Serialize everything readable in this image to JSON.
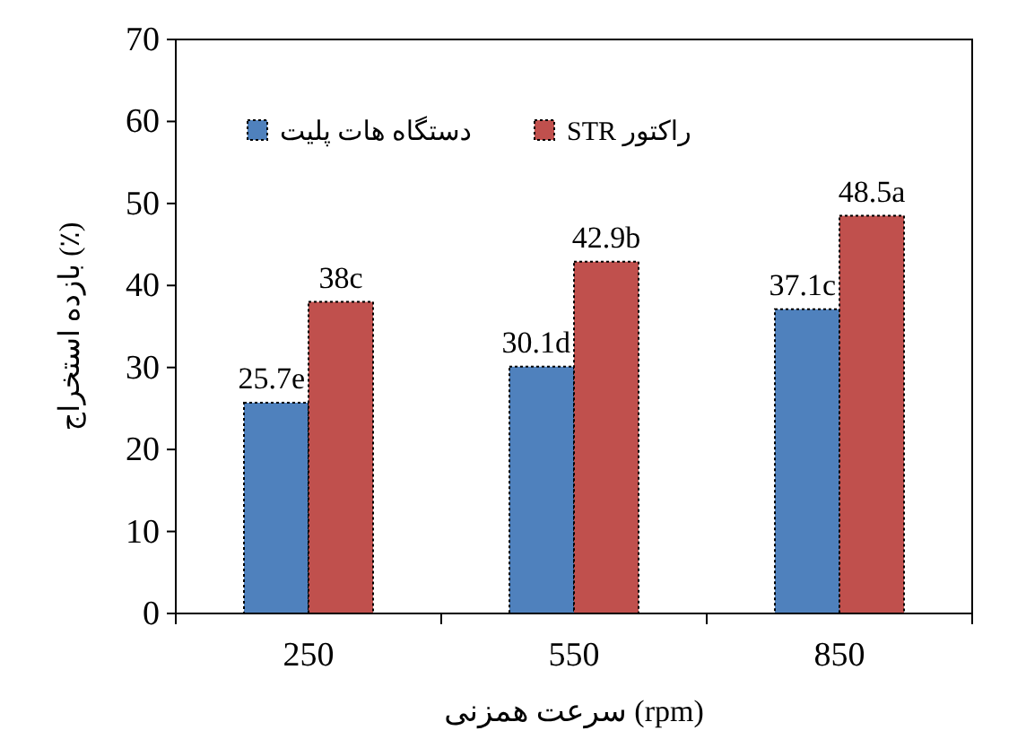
{
  "chart_data": {
    "type": "bar",
    "xlabel": "سرعت همزنی (rpm)",
    "ylabel": "بازده استخراج (٪)",
    "categories": [
      "250",
      "550",
      "850"
    ],
    "series": [
      {
        "name": "دستگاه هات پلیت",
        "color": "#4f81bd",
        "values": [
          25.7,
          30.1,
          37.1
        ],
        "value_labels": [
          "25.7e",
          "30.1d",
          "37.1c"
        ]
      },
      {
        "name": "راکتور STR",
        "color": "#c0504d",
        "values": [
          38,
          42.9,
          48.5
        ],
        "value_labels": [
          "38c",
          "42.9b",
          "48.5a"
        ]
      }
    ],
    "ylim": [
      0,
      70
    ],
    "yticks": [
      0,
      10,
      20,
      30,
      40,
      50,
      60,
      70
    ],
    "legend": "top",
    "grid": false
  }
}
